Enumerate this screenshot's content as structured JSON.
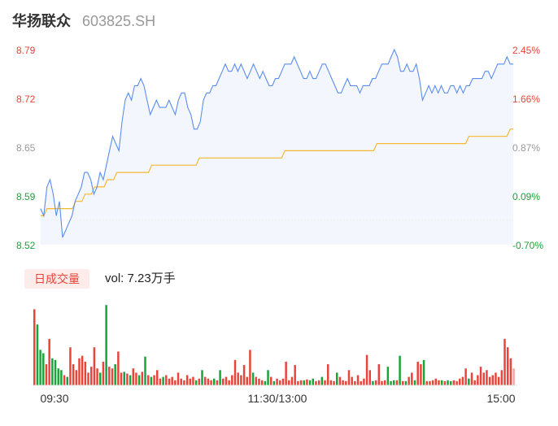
{
  "header": {
    "name": "华扬联众",
    "code": "603825.SH"
  },
  "volume_header": {
    "badge": "日成交量",
    "label": "vol: 7.23万手"
  },
  "colors": {
    "up": "#e8443a",
    "down": "#1aa33a",
    "neutral": "#999999",
    "price_line": "#5b8def",
    "avg_line": "#f5b830",
    "area_fill": "#f3f6fc",
    "badge_bg": "#fdecea",
    "badge_text": "#e8443a"
  },
  "chart_data": [
    {
      "type": "line",
      "title": "",
      "y_ticks_left": [
        "8.79",
        "8.72",
        "8.65",
        "8.59",
        "8.52"
      ],
      "y_ticks_right": [
        "2.45%",
        "1.66%",
        "0.87%",
        "0.09%",
        "-0.70%"
      ],
      "x_ticks": [
        "09:30",
        "11:30/13:00",
        "15:00"
      ],
      "ylim": [
        8.52,
        8.79
      ],
      "series": [
        {
          "key": "price",
          "values": [
            8.57,
            8.56,
            8.6,
            8.61,
            8.59,
            8.56,
            8.58,
            8.53,
            8.54,
            8.55,
            8.56,
            8.58,
            8.59,
            8.6,
            8.62,
            8.62,
            8.61,
            8.59,
            8.6,
            8.62,
            8.61,
            8.63,
            8.65,
            8.67,
            8.66,
            8.65,
            8.69,
            8.72,
            8.73,
            8.72,
            8.74,
            8.74,
            8.75,
            8.74,
            8.72,
            8.7,
            8.71,
            8.72,
            8.71,
            8.71,
            8.71,
            8.72,
            8.71,
            8.7,
            8.72,
            8.73,
            8.73,
            8.71,
            8.7,
            8.68,
            8.68,
            8.69,
            8.72,
            8.73,
            8.73,
            8.74,
            8.74,
            8.75,
            8.76,
            8.77,
            8.76,
            8.76,
            8.77,
            8.76,
            8.77,
            8.76,
            8.75,
            8.76,
            8.77,
            8.76,
            8.75,
            8.76,
            8.75,
            8.74,
            8.74,
            8.75,
            8.75,
            8.76,
            8.77,
            8.77,
            8.77,
            8.78,
            8.77,
            8.76,
            8.75,
            8.75,
            8.76,
            8.75,
            8.75,
            8.76,
            8.77,
            8.77,
            8.76,
            8.75,
            8.74,
            8.73,
            8.73,
            8.74,
            8.75,
            8.74,
            8.74,
            8.74,
            8.73,
            8.74,
            8.74,
            8.74,
            8.75,
            8.75,
            8.76,
            8.77,
            8.77,
            8.77,
            8.78,
            8.79,
            8.78,
            8.76,
            8.76,
            8.77,
            8.76,
            8.76,
            8.77,
            8.75,
            8.72,
            8.73,
            8.74,
            8.73,
            8.74,
            8.73,
            8.74,
            8.73,
            8.73,
            8.74,
            8.74,
            8.73,
            8.74,
            8.73,
            8.74,
            8.74,
            8.75,
            8.75,
            8.75,
            8.75,
            8.76,
            8.76,
            8.75,
            8.76,
            8.77,
            8.77,
            8.77,
            8.78,
            8.77,
            8.77
          ]
        },
        {
          "key": "avg",
          "values": [
            8.56,
            8.56,
            8.57,
            8.57,
            8.57,
            8.57,
            8.57,
            8.57,
            8.57,
            8.57,
            8.57,
            8.58,
            8.58,
            8.58,
            8.59,
            8.59,
            8.59,
            8.6,
            8.6,
            8.6,
            8.6,
            8.61,
            8.61,
            8.61,
            8.62,
            8.62,
            8.62,
            8.62,
            8.62,
            8.62,
            8.62,
            8.62,
            8.62,
            8.62,
            8.62,
            8.63,
            8.63,
            8.63,
            8.63,
            8.63,
            8.63,
            8.63,
            8.63,
            8.63,
            8.63,
            8.63,
            8.63,
            8.63,
            8.63,
            8.63,
            8.64,
            8.64,
            8.64,
            8.64,
            8.64,
            8.64,
            8.64,
            8.64,
            8.64,
            8.64,
            8.64,
            8.64,
            8.64,
            8.64,
            8.64,
            8.64,
            8.64,
            8.64,
            8.64,
            8.64,
            8.64,
            8.64,
            8.64,
            8.64,
            8.64,
            8.64,
            8.64,
            8.65,
            8.65,
            8.65,
            8.65,
            8.65,
            8.65,
            8.65,
            8.65,
            8.65,
            8.65,
            8.65,
            8.65,
            8.65,
            8.65,
            8.65,
            8.65,
            8.65,
            8.65,
            8.65,
            8.65,
            8.65,
            8.65,
            8.65,
            8.65,
            8.65,
            8.65,
            8.65,
            8.65,
            8.65,
            8.66,
            8.66,
            8.66,
            8.66,
            8.66,
            8.66,
            8.66,
            8.66,
            8.66,
            8.66,
            8.66,
            8.66,
            8.66,
            8.66,
            8.66,
            8.66,
            8.66,
            8.66,
            8.66,
            8.66,
            8.66,
            8.66,
            8.66,
            8.66,
            8.66,
            8.66,
            8.66,
            8.66,
            8.66,
            8.67,
            8.67,
            8.67,
            8.67,
            8.67,
            8.67,
            8.67,
            8.67,
            8.67,
            8.67,
            8.67,
            8.67,
            8.67,
            8.68,
            8.68
          ]
        }
      ]
    },
    {
      "type": "bar",
      "title": "",
      "bars": [
        {
          "v": 0.9,
          "d": "u"
        },
        {
          "v": 0.72,
          "d": "d"
        },
        {
          "v": 0.42,
          "d": "d"
        },
        {
          "v": 0.38,
          "d": "d"
        },
        {
          "v": 0.25,
          "d": "u"
        },
        {
          "v": 0.55,
          "d": "u"
        },
        {
          "v": 0.32,
          "d": "d"
        },
        {
          "v": 0.3,
          "d": "d"
        },
        {
          "v": 0.2,
          "d": "d"
        },
        {
          "v": 0.18,
          "d": "d"
        },
        {
          "v": 0.12,
          "d": "u"
        },
        {
          "v": 0.1,
          "d": "d"
        },
        {
          "v": 0.45,
          "d": "u"
        },
        {
          "v": 0.25,
          "d": "u"
        },
        {
          "v": 0.18,
          "d": "u"
        },
        {
          "v": 0.32,
          "d": "u"
        },
        {
          "v": 0.35,
          "d": "u"
        },
        {
          "v": 0.28,
          "d": "u"
        },
        {
          "v": 0.15,
          "d": "u"
        },
        {
          "v": 0.22,
          "d": "u"
        },
        {
          "v": 0.45,
          "d": "u"
        },
        {
          "v": 0.2,
          "d": "u"
        },
        {
          "v": 0.15,
          "d": "d"
        },
        {
          "v": 0.28,
          "d": "u"
        },
        {
          "v": 0.95,
          "d": "d"
        },
        {
          "v": 0.22,
          "d": "u"
        },
        {
          "v": 0.2,
          "d": "u"
        },
        {
          "v": 0.25,
          "d": "d"
        },
        {
          "v": 0.4,
          "d": "u"
        },
        {
          "v": 0.15,
          "d": "u"
        },
        {
          "v": 0.16,
          "d": "d"
        },
        {
          "v": 0.14,
          "d": "u"
        },
        {
          "v": 0.12,
          "d": "d"
        },
        {
          "v": 0.2,
          "d": "u"
        },
        {
          "v": 0.15,
          "d": "u"
        },
        {
          "v": 0.12,
          "d": "d"
        },
        {
          "v": 0.16,
          "d": "u"
        },
        {
          "v": 0.34,
          "d": "d"
        },
        {
          "v": 0.12,
          "d": "u"
        },
        {
          "v": 0.1,
          "d": "d"
        },
        {
          "v": 0.12,
          "d": "u"
        },
        {
          "v": 0.18,
          "d": "u"
        },
        {
          "v": 0.08,
          "d": "u"
        },
        {
          "v": 0.1,
          "d": "d"
        },
        {
          "v": 0.12,
          "d": "u"
        },
        {
          "v": 0.08,
          "d": "u"
        },
        {
          "v": 0.1,
          "d": "u"
        },
        {
          "v": 0.06,
          "d": "u"
        },
        {
          "v": 0.15,
          "d": "u"
        },
        {
          "v": 0.08,
          "d": "u"
        },
        {
          "v": 0.06,
          "d": "u"
        },
        {
          "v": 0.12,
          "d": "u"
        },
        {
          "v": 0.08,
          "d": "u"
        },
        {
          "v": 0.1,
          "d": "u"
        },
        {
          "v": 0.06,
          "d": "d"
        },
        {
          "v": 0.08,
          "d": "u"
        },
        {
          "v": 0.18,
          "d": "d"
        },
        {
          "v": 0.1,
          "d": "u"
        },
        {
          "v": 0.08,
          "d": "u"
        },
        {
          "v": 0.06,
          "d": "u"
        },
        {
          "v": 0.08,
          "d": "d"
        },
        {
          "v": 0.06,
          "d": "u"
        },
        {
          "v": 0.18,
          "d": "d"
        },
        {
          "v": 0.08,
          "d": "u"
        },
        {
          "v": 0.1,
          "d": "u"
        },
        {
          "v": 0.06,
          "d": "u"
        },
        {
          "v": 0.12,
          "d": "u"
        },
        {
          "v": 0.3,
          "d": "u"
        },
        {
          "v": 0.15,
          "d": "u"
        },
        {
          "v": 0.12,
          "d": "u"
        },
        {
          "v": 0.24,
          "d": "u"
        },
        {
          "v": 0.1,
          "d": "u"
        },
        {
          "v": 0.42,
          "d": "u"
        },
        {
          "v": 0.15,
          "d": "d"
        },
        {
          "v": 0.1,
          "d": "u"
        },
        {
          "v": 0.08,
          "d": "u"
        },
        {
          "v": 0.06,
          "d": "u"
        },
        {
          "v": 0.05,
          "d": "d"
        },
        {
          "v": 0.18,
          "d": "d"
        },
        {
          "v": 0.1,
          "d": "u"
        },
        {
          "v": 0.05,
          "d": "d"
        },
        {
          "v": 0.08,
          "d": "u"
        },
        {
          "v": 0.06,
          "d": "u"
        },
        {
          "v": 0.08,
          "d": "u"
        },
        {
          "v": 0.28,
          "d": "u"
        },
        {
          "v": 0.06,
          "d": "u"
        },
        {
          "v": 0.1,
          "d": "u"
        },
        {
          "v": 0.24,
          "d": "u"
        },
        {
          "v": 0.05,
          "d": "u"
        },
        {
          "v": 0.06,
          "d": "u"
        },
        {
          "v": 0.06,
          "d": "d"
        },
        {
          "v": 0.07,
          "d": "u"
        },
        {
          "v": 0.06,
          "d": "d"
        },
        {
          "v": 0.08,
          "d": "d"
        },
        {
          "v": 0.05,
          "d": "u"
        },
        {
          "v": 0.06,
          "d": "u"
        },
        {
          "v": 0.1,
          "d": "d"
        },
        {
          "v": 0.06,
          "d": "u"
        },
        {
          "v": 0.25,
          "d": "u"
        },
        {
          "v": 0.06,
          "d": "u"
        },
        {
          "v": 0.05,
          "d": "u"
        },
        {
          "v": 0.15,
          "d": "d"
        },
        {
          "v": 0.1,
          "d": "u"
        },
        {
          "v": 0.06,
          "d": "u"
        },
        {
          "v": 0.05,
          "d": "u"
        },
        {
          "v": 0.18,
          "d": "u"
        },
        {
          "v": 0.1,
          "d": "u"
        },
        {
          "v": 0.05,
          "d": "u"
        },
        {
          "v": 0.12,
          "d": "u"
        },
        {
          "v": 0.05,
          "d": "u"
        },
        {
          "v": 0.08,
          "d": "u"
        },
        {
          "v": 0.36,
          "d": "u"
        },
        {
          "v": 0.18,
          "d": "u"
        },
        {
          "v": 0.05,
          "d": "d"
        },
        {
          "v": 0.06,
          "d": "u"
        },
        {
          "v": 0.25,
          "d": "u"
        },
        {
          "v": 0.05,
          "d": "u"
        },
        {
          "v": 0.06,
          "d": "u"
        },
        {
          "v": 0.22,
          "d": "d"
        },
        {
          "v": 0.05,
          "d": "d"
        },
        {
          "v": 0.06,
          "d": "d"
        },
        {
          "v": 0.06,
          "d": "u"
        },
        {
          "v": 0.35,
          "d": "d"
        },
        {
          "v": 0.05,
          "d": "u"
        },
        {
          "v": 0.05,
          "d": "d"
        },
        {
          "v": 0.1,
          "d": "u"
        },
        {
          "v": 0.15,
          "d": "u"
        },
        {
          "v": 0.06,
          "d": "d"
        },
        {
          "v": 0.28,
          "d": "u"
        },
        {
          "v": 0.25,
          "d": "u"
        },
        {
          "v": 0.3,
          "d": "d"
        },
        {
          "v": 0.05,
          "d": "u"
        },
        {
          "v": 0.05,
          "d": "u"
        },
        {
          "v": 0.06,
          "d": "u"
        },
        {
          "v": 0.08,
          "d": "u"
        },
        {
          "v": 0.06,
          "d": "u"
        },
        {
          "v": 0.06,
          "d": "d"
        },
        {
          "v": 0.05,
          "d": "u"
        },
        {
          "v": 0.06,
          "d": "d"
        },
        {
          "v": 0.05,
          "d": "d"
        },
        {
          "v": 0.06,
          "d": "u"
        },
        {
          "v": 0.05,
          "d": "u"
        },
        {
          "v": 0.08,
          "d": "u"
        },
        {
          "v": 0.1,
          "d": "u"
        },
        {
          "v": 0.2,
          "d": "u"
        },
        {
          "v": 0.08,
          "d": "d"
        },
        {
          "v": 0.15,
          "d": "u"
        },
        {
          "v": 0.06,
          "d": "u"
        },
        {
          "v": 0.12,
          "d": "u"
        },
        {
          "v": 0.22,
          "d": "u"
        },
        {
          "v": 0.15,
          "d": "u"
        },
        {
          "v": 0.18,
          "d": "u"
        },
        {
          "v": 0.1,
          "d": "u"
        },
        {
          "v": 0.12,
          "d": "u"
        },
        {
          "v": 0.15,
          "d": "u"
        },
        {
          "v": 0.1,
          "d": "u"
        },
        {
          "v": 0.18,
          "d": "u"
        },
        {
          "v": 0.55,
          "d": "u"
        },
        {
          "v": 0.45,
          "d": "u"
        },
        {
          "v": 0.32,
          "d": "u"
        },
        {
          "v": 0.2,
          "d": "n"
        }
      ]
    }
  ]
}
